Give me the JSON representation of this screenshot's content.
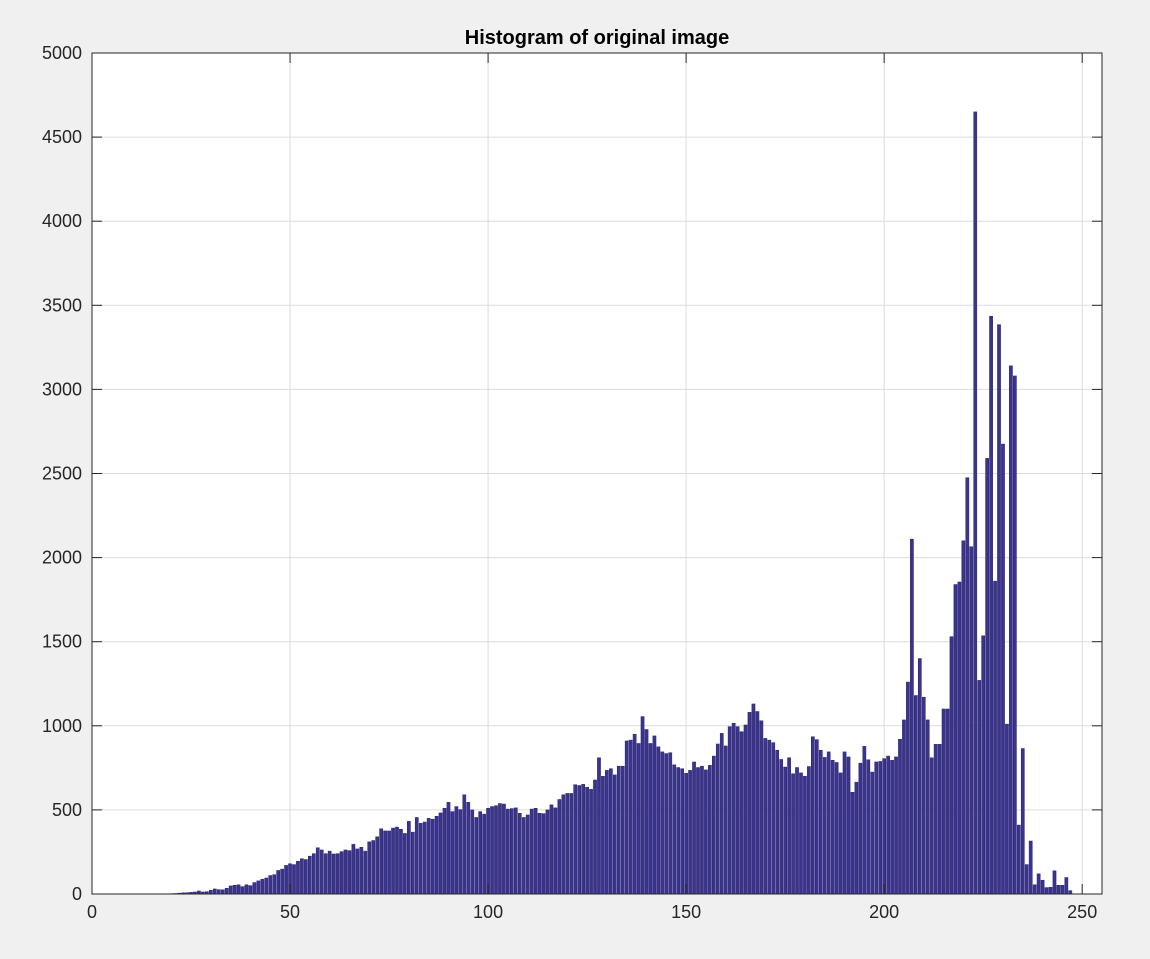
{
  "chart_data": {
    "type": "bar",
    "title": "Histogram of original image",
    "xlabel": "",
    "ylabel": "",
    "xlim": [
      0,
      255
    ],
    "ylim": [
      0,
      5000
    ],
    "xticks": [
      0,
      50,
      100,
      150,
      200,
      250
    ],
    "yticks": [
      0,
      500,
      1000,
      1500,
      2000,
      2500,
      3000,
      3500,
      4000,
      4500,
      5000
    ],
    "grid": true,
    "bar_color": "#3b348c",
    "bar_edge_color": "#2a2470",
    "x_start": 0,
    "values": [
      0,
      0,
      0,
      0,
      0,
      0,
      0,
      0,
      0,
      0,
      0,
      0,
      0,
      0,
      0,
      0,
      0,
      0,
      0,
      0,
      2,
      3,
      5,
      7,
      8,
      10,
      12,
      18,
      12,
      14,
      22,
      30,
      26,
      25,
      34,
      48,
      52,
      55,
      44,
      55,
      50,
      68,
      78,
      88,
      95,
      110,
      115,
      140,
      148,
      170,
      180,
      175,
      195,
      210,
      205,
      225,
      240,
      275,
      262,
      240,
      255,
      238,
      240,
      252,
      262,
      258,
      295,
      268,
      278,
      255,
      310,
      318,
      340,
      388,
      375,
      375,
      392,
      398,
      385,
      360,
      432,
      368,
      455,
      420,
      428,
      450,
      445,
      462,
      482,
      510,
      545,
      490,
      520,
      502,
      590,
      545,
      500,
      455,
      490,
      475,
      510,
      520,
      525,
      538,
      535,
      505,
      508,
      512,
      480,
      455,
      470,
      505,
      510,
      480,
      478,
      500,
      530,
      512,
      562,
      590,
      598,
      598,
      650,
      645,
      652,
      635,
      622,
      678,
      810,
      700,
      735,
      745,
      708,
      760,
      760,
      910,
      915,
      950,
      895,
      1055,
      978,
      895,
      940,
      875,
      845,
      835,
      840,
      768,
      752,
      745,
      718,
      735,
      785,
      752,
      760,
      738,
      765,
      820,
      892,
      955,
      880,
      995,
      1015,
      995,
      965,
      1005,
      1080,
      1130,
      1085,
      1030,
      925,
      915,
      900,
      855,
      800,
      755,
      810,
      715,
      752,
      720,
      700,
      758,
      935,
      918,
      855,
      812,
      845,
      795,
      782,
      720,
      845,
      815,
      605,
      665,
      778,
      878,
      798,
      725,
      785,
      788,
      805,
      820,
      795,
      815,
      920,
      1035,
      1260,
      2110,
      1180,
      1400,
      1170,
      1035,
      810,
      890,
      890,
      1100,
      1100,
      1530,
      1840,
      1855,
      2100,
      2475,
      2065,
      4650,
      1270,
      1535,
      2590,
      3435,
      1860,
      3385,
      2675,
      1010,
      3140,
      3080,
      410,
      865,
      175,
      315,
      55,
      120,
      82,
      38,
      40,
      138,
      52,
      52,
      98,
      20,
      0,
      0
    ]
  }
}
